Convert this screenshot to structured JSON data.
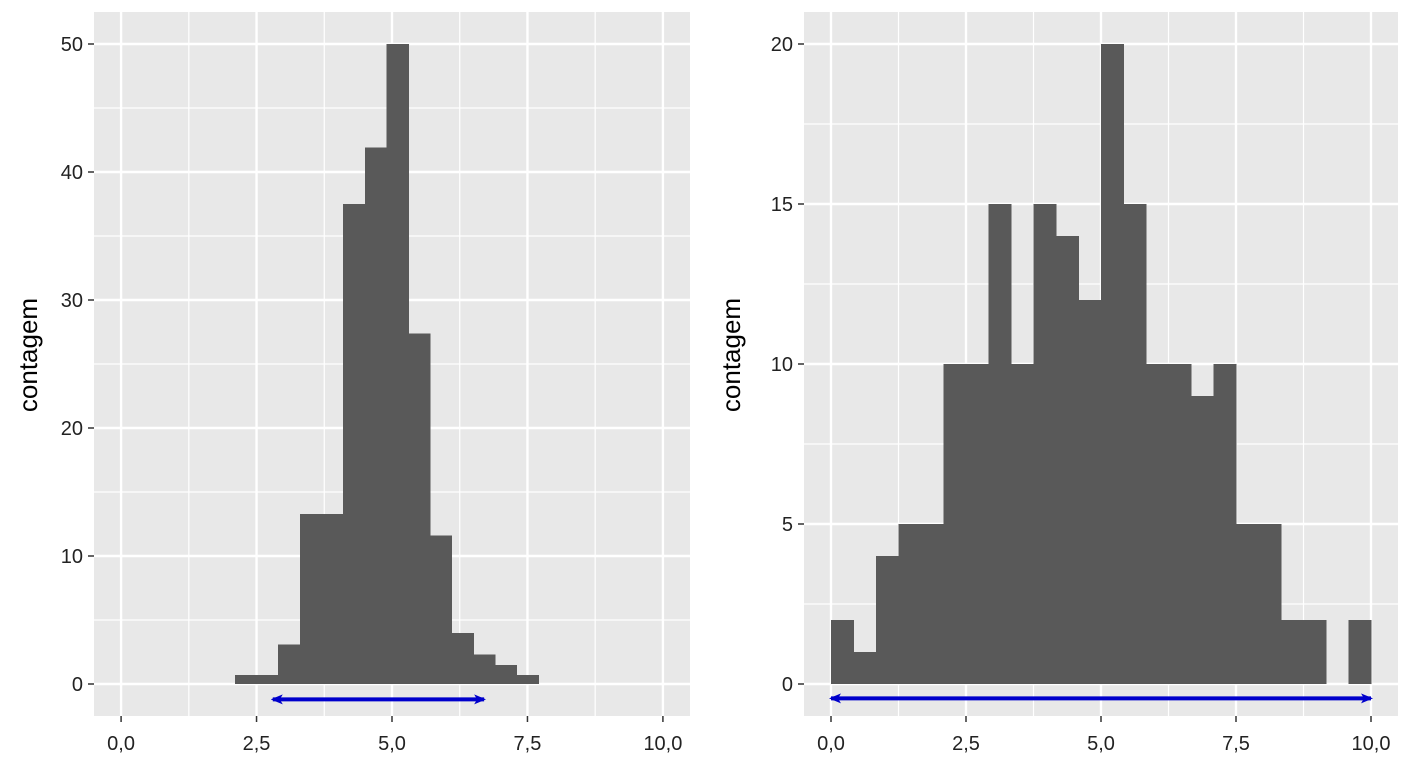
{
  "colors": {
    "panel_background": "#e8e8e8",
    "grid": "#ffffff",
    "bar_fill": "#595959",
    "arrow": "#0000cc",
    "tick": "#333333",
    "text": "#222222"
  },
  "chart_data": [
    {
      "type": "bar",
      "histogram": true,
      "title": "",
      "xlabel": "",
      "ylabel": "contagem",
      "xlim": [
        -0.5,
        10.5
      ],
      "ylim": [
        -2.5,
        52.5
      ],
      "x_ticks": [
        0,
        2.5,
        5,
        7.5,
        10
      ],
      "x_tick_labels": [
        "0,0",
        "2,5",
        "5,0",
        "7,5",
        "10,0"
      ],
      "y_ticks": [
        0,
        10,
        20,
        30,
        40,
        50
      ],
      "y_tick_labels": [
        "0",
        "10",
        "20",
        "30",
        "40",
        "50"
      ],
      "grid": true,
      "bins": [
        {
          "x0": 2.1,
          "x1": 2.5,
          "count": 0.7
        },
        {
          "x0": 2.5,
          "x1": 2.9,
          "count": 0.7
        },
        {
          "x0": 2.9,
          "x1": 3.3,
          "count": 3.1
        },
        {
          "x0": 3.3,
          "x1": 3.7,
          "count": 13.3
        },
        {
          "x0": 3.7,
          "x1": 4.1,
          "count": 13.3
        },
        {
          "x0": 4.1,
          "x1": 4.5,
          "count": 37.5
        },
        {
          "x0": 4.5,
          "x1": 4.9,
          "count": 41.9
        },
        {
          "x0": 4.9,
          "x1": 5.3,
          "count": 50
        },
        {
          "x0": 5.3,
          "x1": 5.7,
          "count": 27.4
        },
        {
          "x0": 5.7,
          "x1": 6.1,
          "count": 11.6
        },
        {
          "x0": 6.1,
          "x1": 6.5,
          "count": 4
        },
        {
          "x0": 6.5,
          "x1": 6.9,
          "count": 2.3
        },
        {
          "x0": 6.9,
          "x1": 7.3,
          "count": 1.5
        },
        {
          "x0": 7.3,
          "x1": 7.7,
          "count": 0.7
        }
      ],
      "range_arrow": {
        "from": 2.8,
        "to": 6.7,
        "y": -1.2
      }
    },
    {
      "type": "bar",
      "histogram": true,
      "title": "",
      "xlabel": "",
      "ylabel": "contagem",
      "xlim": [
        -0.5,
        10.5
      ],
      "ylim": [
        -1,
        21
      ],
      "x_ticks": [
        0,
        2.5,
        5,
        7.5,
        10
      ],
      "x_tick_labels": [
        "0,0",
        "2,5",
        "5,0",
        "7,5",
        "10,0"
      ],
      "y_ticks": [
        0,
        5,
        10,
        15,
        20
      ],
      "y_tick_labels": [
        "0",
        "5",
        "10",
        "15",
        "20"
      ],
      "grid": true,
      "bins": [
        {
          "x0": 0.0,
          "x1": 0.417,
          "count": 2
        },
        {
          "x0": 0.417,
          "x1": 0.833,
          "count": 1
        },
        {
          "x0": 0.833,
          "x1": 1.25,
          "count": 4
        },
        {
          "x0": 1.25,
          "x1": 1.667,
          "count": 5
        },
        {
          "x0": 1.667,
          "x1": 2.083,
          "count": 5
        },
        {
          "x0": 2.083,
          "x1": 2.5,
          "count": 10
        },
        {
          "x0": 2.5,
          "x1": 2.917,
          "count": 10
        },
        {
          "x0": 2.917,
          "x1": 3.333,
          "count": 15
        },
        {
          "x0": 3.333,
          "x1": 3.75,
          "count": 10
        },
        {
          "x0": 3.75,
          "x1": 4.167,
          "count": 15
        },
        {
          "x0": 4.167,
          "x1": 4.583,
          "count": 14
        },
        {
          "x0": 4.583,
          "x1": 5.0,
          "count": 12
        },
        {
          "x0": 5.0,
          "x1": 5.417,
          "count": 20
        },
        {
          "x0": 5.417,
          "x1": 5.833,
          "count": 15
        },
        {
          "x0": 5.833,
          "x1": 6.25,
          "count": 10
        },
        {
          "x0": 6.25,
          "x1": 6.667,
          "count": 10
        },
        {
          "x0": 6.667,
          "x1": 7.083,
          "count": 9
        },
        {
          "x0": 7.083,
          "x1": 7.5,
          "count": 10
        },
        {
          "x0": 7.5,
          "x1": 7.917,
          "count": 5
        },
        {
          "x0": 7.917,
          "x1": 8.333,
          "count": 5
        },
        {
          "x0": 8.333,
          "x1": 8.75,
          "count": 2
        },
        {
          "x0": 8.75,
          "x1": 9.167,
          "count": 2
        },
        {
          "x0": 9.167,
          "x1": 9.583,
          "count": 0
        },
        {
          "x0": 9.583,
          "x1": 10.0,
          "count": 2
        }
      ],
      "range_arrow": {
        "from": 0.0,
        "to": 10.0,
        "y": -0.45
      }
    }
  ]
}
